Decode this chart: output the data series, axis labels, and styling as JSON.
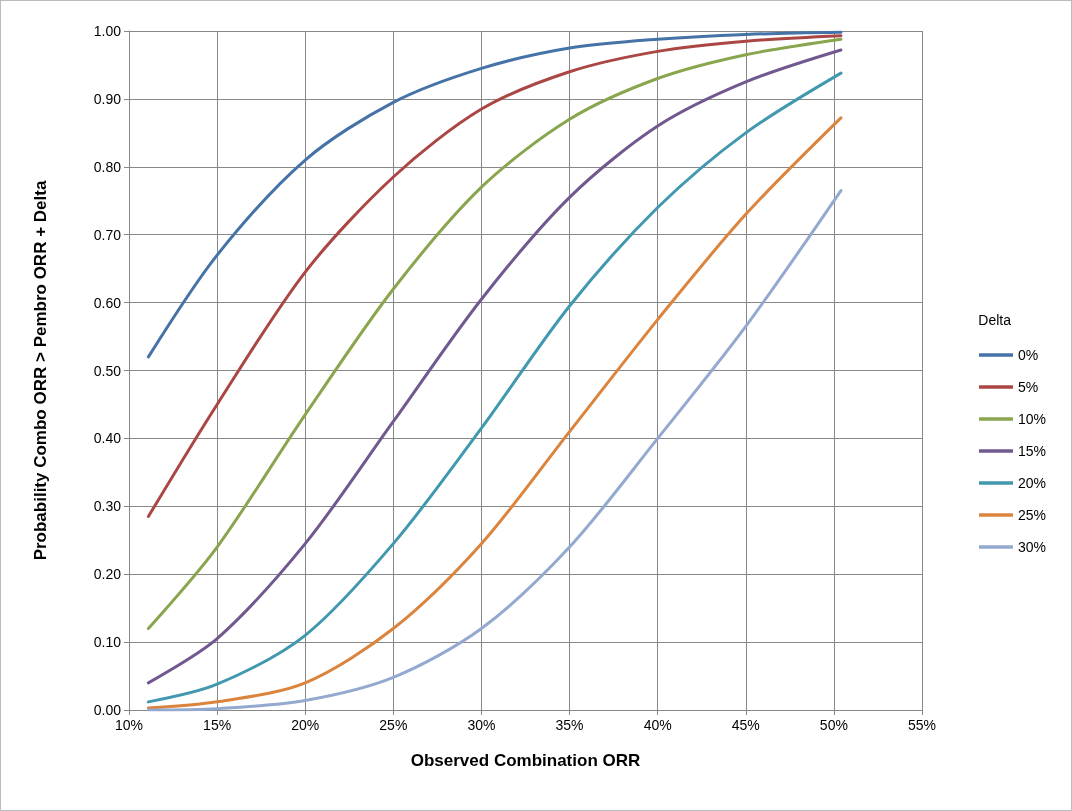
{
  "chart_data": {
    "type": "line",
    "xlabel": "Observed Combination ORR",
    "ylabel": "Probability Combo ORR > Pembro ORR + Delta",
    "legend_title": "Delta",
    "legend": "right",
    "grid": true,
    "marker": "none",
    "line_style": "solid",
    "x": [
      11.1,
      15,
      20,
      25,
      30,
      35,
      40,
      45,
      50.4
    ],
    "xlim": [
      10,
      55
    ],
    "xticks": [
      {
        "value": 10,
        "label": "10%"
      },
      {
        "value": 15,
        "label": "15%"
      },
      {
        "value": 20,
        "label": "20%"
      },
      {
        "value": 25,
        "label": "25%"
      },
      {
        "value": 30,
        "label": "30%"
      },
      {
        "value": 35,
        "label": "35%"
      },
      {
        "value": 40,
        "label": "40%"
      },
      {
        "value": 45,
        "label": "45%"
      },
      {
        "value": 50,
        "label": "50%"
      },
      {
        "value": 55,
        "label": "55%"
      }
    ],
    "ylim": [
      0,
      1
    ],
    "yticks": [
      {
        "value": 0,
        "label": "0.00"
      },
      {
        "value": 0.1,
        "label": "0.10"
      },
      {
        "value": 0.2,
        "label": "0.20"
      },
      {
        "value": 0.3,
        "label": "0.30"
      },
      {
        "value": 0.4,
        "label": "0.40"
      },
      {
        "value": 0.5,
        "label": "0.50"
      },
      {
        "value": 0.6,
        "label": "0.60"
      },
      {
        "value": 0.7,
        "label": "0.70"
      },
      {
        "value": 0.8,
        "label": "0.80"
      },
      {
        "value": 0.9,
        "label": "0.90"
      },
      {
        "value": 1,
        "label": "1.00"
      }
    ],
    "series": [
      {
        "name": "0%",
        "color": "#4572a7",
        "values": [
          0.52,
          0.67,
          0.81,
          0.895,
          0.945,
          0.975,
          0.988,
          0.995,
          0.998
        ]
      },
      {
        "name": "5%",
        "color": "#aa4643",
        "values": [
          0.285,
          0.45,
          0.645,
          0.785,
          0.885,
          0.94,
          0.97,
          0.985,
          0.993
        ]
      },
      {
        "name": "10%",
        "color": "#89a54e",
        "values": [
          0.12,
          0.24,
          0.435,
          0.62,
          0.77,
          0.87,
          0.93,
          0.965,
          0.988
        ]
      },
      {
        "name": "15%",
        "color": "#71588f",
        "values": [
          0.04,
          0.105,
          0.245,
          0.425,
          0.605,
          0.755,
          0.86,
          0.925,
          0.972
        ]
      },
      {
        "name": "20%",
        "color": "#4198af",
        "values": [
          0.012,
          0.038,
          0.11,
          0.245,
          0.415,
          0.595,
          0.74,
          0.85,
          0.938
        ]
      },
      {
        "name": "25%",
        "color": "#db843d",
        "values": [
          0.003,
          0.012,
          0.04,
          0.12,
          0.245,
          0.41,
          0.575,
          0.73,
          0.872
        ]
      },
      {
        "name": "30%",
        "color": "#93a9cf",
        "values": [
          0,
          0.002,
          0.014,
          0.048,
          0.12,
          0.24,
          0.4,
          0.565,
          0.765
        ]
      }
    ]
  }
}
